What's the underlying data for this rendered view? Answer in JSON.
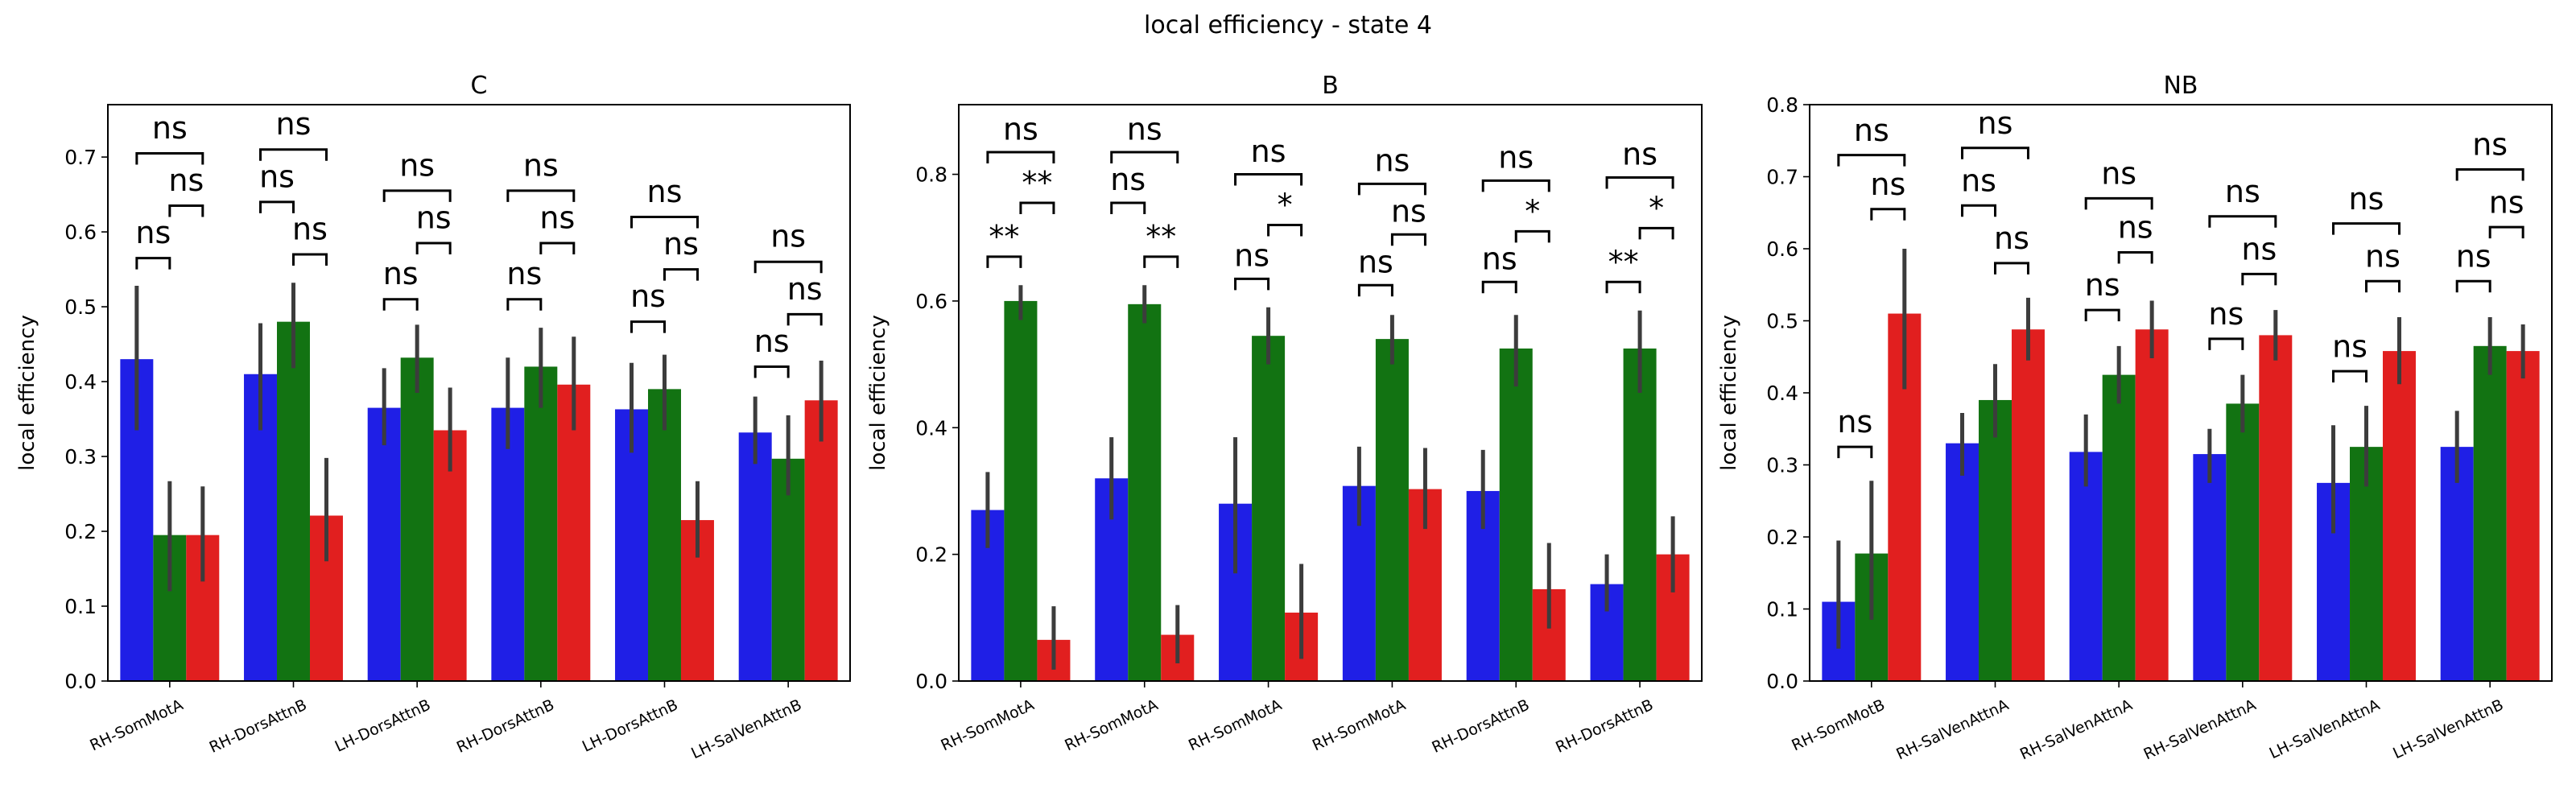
{
  "figure": {
    "suptitle": "local efficiency - state 4"
  },
  "colors": {
    "series": [
      "#1f1fe6",
      "#127312",
      "#e11f1f"
    ],
    "errorbar": "#3c3c3c"
  },
  "chart_data": [
    {
      "type": "bar",
      "title": "C",
      "ylabel": "local efficiency",
      "ylim": [
        0,
        0.77
      ],
      "yticks": [
        "0.0",
        "0.1",
        "0.2",
        "0.3",
        "0.4",
        "0.5",
        "0.6",
        "0.7"
      ],
      "categories": [
        "RH-SomMotA",
        "RH-DorsAttnB",
        "LH-DorsAttnB",
        "RH-DorsAttnB",
        "LH-DorsAttnB",
        "LH-SalVenAttnB"
      ],
      "series": [
        {
          "values": [
            0.43,
            0.41,
            0.365,
            0.365,
            0.363,
            0.332
          ],
          "ci": [
            [
              0.335,
              0.528
            ],
            [
              0.335,
              0.478
            ],
            [
              0.315,
              0.418
            ],
            [
              0.31,
              0.432
            ],
            [
              0.305,
              0.425
            ],
            [
              0.29,
              0.38
            ]
          ]
        },
        {
          "values": [
            0.195,
            0.48,
            0.432,
            0.42,
            0.39,
            0.297
          ],
          "ci": [
            [
              0.12,
              0.267
            ],
            [
              0.418,
              0.532
            ],
            [
              0.385,
              0.476
            ],
            [
              0.365,
              0.472
            ],
            [
              0.335,
              0.436
            ],
            [
              0.248,
              0.355
            ]
          ]
        },
        {
          "values": [
            0.195,
            0.221,
            0.335,
            0.396,
            0.215,
            0.375
          ],
          "ci": [
            [
              0.133,
              0.26
            ],
            [
              0.16,
              0.298
            ],
            [
              0.28,
              0.392
            ],
            [
              0.335,
              0.46
            ],
            [
              0.165,
              0.267
            ],
            [
              0.32,
              0.428
            ]
          ]
        }
      ],
      "annotations": [
        {
          "category": 0,
          "pair": [
            0,
            1
          ],
          "label": "ns",
          "y": 0.565,
          "text_y": 0.585
        },
        {
          "category": 0,
          "pair": [
            1,
            2
          ],
          "label": "ns",
          "y": 0.635,
          "text_y": 0.655
        },
        {
          "category": 0,
          "pair": [
            0,
            2
          ],
          "label": "ns",
          "y": 0.705,
          "text_y": 0.725
        },
        {
          "category": 1,
          "pair": [
            0,
            1
          ],
          "label": "ns",
          "y": 0.64,
          "text_y": 0.66
        },
        {
          "category": 1,
          "pair": [
            1,
            2
          ],
          "label": "ns",
          "y": 0.57,
          "text_y": 0.59
        },
        {
          "category": 1,
          "pair": [
            0,
            2
          ],
          "label": "ns",
          "y": 0.71,
          "text_y": 0.73
        },
        {
          "category": 2,
          "pair": [
            0,
            1
          ],
          "label": "ns",
          "y": 0.51,
          "text_y": 0.53
        },
        {
          "category": 2,
          "pair": [
            1,
            2
          ],
          "label": "ns",
          "y": 0.585,
          "text_y": 0.605
        },
        {
          "category": 2,
          "pair": [
            0,
            2
          ],
          "label": "ns",
          "y": 0.655,
          "text_y": 0.675
        },
        {
          "category": 3,
          "pair": [
            0,
            1
          ],
          "label": "ns",
          "y": 0.51,
          "text_y": 0.53
        },
        {
          "category": 3,
          "pair": [
            1,
            2
          ],
          "label": "ns",
          "y": 0.585,
          "text_y": 0.605
        },
        {
          "category": 3,
          "pair": [
            0,
            2
          ],
          "label": "ns",
          "y": 0.655,
          "text_y": 0.675
        },
        {
          "category": 4,
          "pair": [
            0,
            1
          ],
          "label": "ns",
          "y": 0.48,
          "text_y": 0.5
        },
        {
          "category": 4,
          "pair": [
            1,
            2
          ],
          "label": "ns",
          "y": 0.55,
          "text_y": 0.57
        },
        {
          "category": 4,
          "pair": [
            0,
            2
          ],
          "label": "ns",
          "y": 0.62,
          "text_y": 0.64
        },
        {
          "category": 5,
          "pair": [
            0,
            1
          ],
          "label": "ns",
          "y": 0.42,
          "text_y": 0.44
        },
        {
          "category": 5,
          "pair": [
            1,
            2
          ],
          "label": "ns",
          "y": 0.49,
          "text_y": 0.51
        },
        {
          "category": 5,
          "pair": [
            0,
            2
          ],
          "label": "ns",
          "y": 0.56,
          "text_y": 0.58
        }
      ]
    },
    {
      "type": "bar",
      "title": "B",
      "ylabel": "local efficiency",
      "ylim": [
        0,
        0.91
      ],
      "yticks": [
        "0.0",
        "0.2",
        "0.4",
        "0.6",
        "0.8"
      ],
      "categories": [
        "RH-SomMotA",
        "RH-SomMotA",
        "RH-SomMotA",
        "RH-SomMotA",
        "RH-DorsAttnB",
        "RH-DorsAttnB"
      ],
      "series": [
        {
          "values": [
            0.27,
            0.32,
            0.28,
            0.308,
            0.3,
            0.153
          ],
          "ci": [
            [
              0.21,
              0.33
            ],
            [
              0.255,
              0.385
            ],
            [
              0.17,
              0.385
            ],
            [
              0.245,
              0.37
            ],
            [
              0.24,
              0.365
            ],
            [
              0.11,
              0.2
            ]
          ]
        },
        {
          "values": [
            0.6,
            0.595,
            0.545,
            0.54,
            0.525,
            0.525
          ],
          "ci": [
            [
              0.57,
              0.625
            ],
            [
              0.565,
              0.625
            ],
            [
              0.5,
              0.59
            ],
            [
              0.5,
              0.578
            ],
            [
              0.465,
              0.578
            ],
            [
              0.455,
              0.585
            ]
          ]
        },
        {
          "values": [
            0.065,
            0.073,
            0.108,
            0.303,
            0.145,
            0.2
          ],
          "ci": [
            [
              0.018,
              0.118
            ],
            [
              0.028,
              0.12
            ],
            [
              0.035,
              0.185
            ],
            [
              0.24,
              0.368
            ],
            [
              0.083,
              0.218
            ],
            [
              0.14,
              0.26
            ]
          ]
        }
      ],
      "annotations": [
        {
          "category": 0,
          "pair": [
            0,
            1
          ],
          "label": "**",
          "y": 0.67,
          "text_y": 0.685
        },
        {
          "category": 0,
          "pair": [
            1,
            2
          ],
          "label": "**",
          "y": 0.755,
          "text_y": 0.77
        },
        {
          "category": 0,
          "pair": [
            0,
            2
          ],
          "label": "ns",
          "y": 0.835,
          "text_y": 0.855
        },
        {
          "category": 1,
          "pair": [
            0,
            1
          ],
          "label": "ns",
          "y": 0.755,
          "text_y": 0.775
        },
        {
          "category": 1,
          "pair": [
            1,
            2
          ],
          "label": "**",
          "y": 0.67,
          "text_y": 0.685
        },
        {
          "category": 1,
          "pair": [
            0,
            2
          ],
          "label": "ns",
          "y": 0.835,
          "text_y": 0.855
        },
        {
          "category": 2,
          "pair": [
            0,
            1
          ],
          "label": "ns",
          "y": 0.635,
          "text_y": 0.655
        },
        {
          "category": 2,
          "pair": [
            1,
            2
          ],
          "label": "*",
          "y": 0.72,
          "text_y": 0.735
        },
        {
          "category": 2,
          "pair": [
            0,
            2
          ],
          "label": "ns",
          "y": 0.8,
          "text_y": 0.82
        },
        {
          "category": 3,
          "pair": [
            0,
            1
          ],
          "label": "ns",
          "y": 0.625,
          "text_y": 0.645
        },
        {
          "category": 3,
          "pair": [
            1,
            2
          ],
          "label": "ns",
          "y": 0.705,
          "text_y": 0.725
        },
        {
          "category": 3,
          "pair": [
            0,
            2
          ],
          "label": "ns",
          "y": 0.785,
          "text_y": 0.805
        },
        {
          "category": 4,
          "pair": [
            0,
            1
          ],
          "label": "ns",
          "y": 0.63,
          "text_y": 0.65
        },
        {
          "category": 4,
          "pair": [
            1,
            2
          ],
          "label": "*",
          "y": 0.71,
          "text_y": 0.725
        },
        {
          "category": 4,
          "pair": [
            0,
            2
          ],
          "label": "ns",
          "y": 0.79,
          "text_y": 0.81
        },
        {
          "category": 5,
          "pair": [
            0,
            1
          ],
          "label": "**",
          "y": 0.63,
          "text_y": 0.645
        },
        {
          "category": 5,
          "pair": [
            1,
            2
          ],
          "label": "*",
          "y": 0.715,
          "text_y": 0.73
        },
        {
          "category": 5,
          "pair": [
            0,
            2
          ],
          "label": "ns",
          "y": 0.795,
          "text_y": 0.815
        }
      ]
    },
    {
      "type": "bar",
      "title": "NB",
      "ylabel": "local efficiency",
      "ylim": [
        0,
        0.8
      ],
      "yticks": [
        "0.0",
        "0.1",
        "0.2",
        "0.3",
        "0.4",
        "0.5",
        "0.6",
        "0.7",
        "0.8"
      ],
      "categories": [
        "RH-SomMotB",
        "RH-SalVenAttnA",
        "RH-SalVenAttnA",
        "RH-SalVenAttnA",
        "LH-SalVenAttnA",
        "LH-SalVenAttnB"
      ],
      "series": [
        {
          "values": [
            0.11,
            0.33,
            0.318,
            0.315,
            0.275,
            0.325
          ],
          "ci": [
            [
              0.045,
              0.195
            ],
            [
              0.285,
              0.372
            ],
            [
              0.27,
              0.37
            ],
            [
              0.275,
              0.35
            ],
            [
              0.205,
              0.355
            ],
            [
              0.275,
              0.375
            ]
          ]
        },
        {
          "values": [
            0.177,
            0.39,
            0.425,
            0.385,
            0.325,
            0.465
          ],
          "ci": [
            [
              0.085,
              0.278
            ],
            [
              0.338,
              0.44
            ],
            [
              0.385,
              0.465
            ],
            [
              0.345,
              0.425
            ],
            [
              0.27,
              0.382
            ],
            [
              0.425,
              0.505
            ]
          ]
        },
        {
          "values": [
            0.51,
            0.488,
            0.488,
            0.48,
            0.458,
            0.458
          ],
          "ci": [
            [
              0.405,
              0.6
            ],
            [
              0.445,
              0.532
            ],
            [
              0.448,
              0.528
            ],
            [
              0.445,
              0.515
            ],
            [
              0.412,
              0.505
            ],
            [
              0.42,
              0.495
            ]
          ]
        }
      ],
      "annotations": [
        {
          "category": 0,
          "pair": [
            0,
            1
          ],
          "label": "ns",
          "y": 0.325,
          "text_y": 0.345
        },
        {
          "category": 0,
          "pair": [
            1,
            2
          ],
          "label": "ns",
          "y": 0.655,
          "text_y": 0.675
        },
        {
          "category": 0,
          "pair": [
            0,
            2
          ],
          "label": "ns",
          "y": 0.73,
          "text_y": 0.75
        },
        {
          "category": 1,
          "pair": [
            0,
            1
          ],
          "label": "ns",
          "y": 0.66,
          "text_y": 0.68
        },
        {
          "category": 1,
          "pair": [
            1,
            2
          ],
          "label": "ns",
          "y": 0.58,
          "text_y": 0.6
        },
        {
          "category": 1,
          "pair": [
            0,
            2
          ],
          "label": "ns",
          "y": 0.74,
          "text_y": 0.76
        },
        {
          "category": 2,
          "pair": [
            0,
            1
          ],
          "label": "ns",
          "y": 0.515,
          "text_y": 0.535
        },
        {
          "category": 2,
          "pair": [
            1,
            2
          ],
          "label": "ns",
          "y": 0.595,
          "text_y": 0.615
        },
        {
          "category": 2,
          "pair": [
            0,
            2
          ],
          "label": "ns",
          "y": 0.67,
          "text_y": 0.69
        },
        {
          "category": 3,
          "pair": [
            0,
            1
          ],
          "label": "ns",
          "y": 0.475,
          "text_y": 0.495
        },
        {
          "category": 3,
          "pair": [
            1,
            2
          ],
          "label": "ns",
          "y": 0.565,
          "text_y": 0.585
        },
        {
          "category": 3,
          "pair": [
            0,
            2
          ],
          "label": "ns",
          "y": 0.645,
          "text_y": 0.665
        },
        {
          "category": 4,
          "pair": [
            0,
            1
          ],
          "label": "ns",
          "y": 0.43,
          "text_y": 0.45
        },
        {
          "category": 4,
          "pair": [
            1,
            2
          ],
          "label": "ns",
          "y": 0.555,
          "text_y": 0.575
        },
        {
          "category": 4,
          "pair": [
            0,
            2
          ],
          "label": "ns",
          "y": 0.635,
          "text_y": 0.655
        },
        {
          "category": 5,
          "pair": [
            0,
            1
          ],
          "label": "ns",
          "y": 0.555,
          "text_y": 0.575
        },
        {
          "category": 5,
          "pair": [
            1,
            2
          ],
          "label": "ns",
          "y": 0.63,
          "text_y": 0.65
        },
        {
          "category": 5,
          "pair": [
            0,
            2
          ],
          "label": "ns",
          "y": 0.71,
          "text_y": 0.73
        }
      ]
    }
  ]
}
